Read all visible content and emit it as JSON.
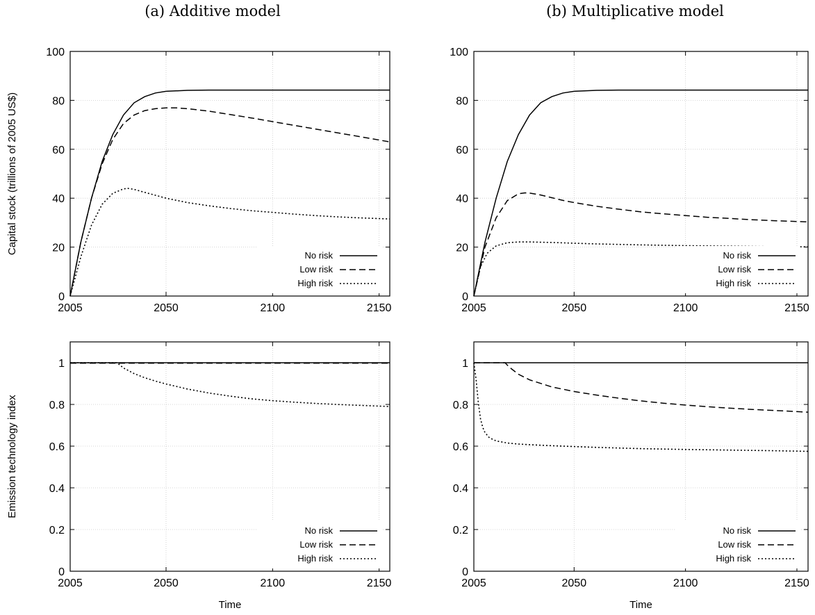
{
  "columns": [
    "(a) Additive model",
    "(b) Multiplicative model"
  ],
  "style": {
    "line_color": "#000000",
    "grid_color": "#c8c8c8",
    "legend_bg": "#ffffff"
  },
  "chart_data": [
    {
      "type": "line",
      "title": "",
      "xlabel": "",
      "ylabel": "Capital stock (trillions of 2005 US$)",
      "xlim": [
        2005,
        2155
      ],
      "ylim": [
        0,
        100
      ],
      "xticks": [
        2005,
        2050,
        2100,
        2150
      ],
      "yticks": [
        0,
        20,
        40,
        60,
        80,
        100
      ],
      "legend_position": "bottom-right",
      "grid": true,
      "series": [
        {
          "name": "No risk",
          "dash": "solid",
          "x": [
            2005,
            2010,
            2015,
            2020,
            2025,
            2030,
            2035,
            2040,
            2045,
            2050,
            2060,
            2070,
            2080,
            2100,
            2120,
            2155
          ],
          "y": [
            0,
            22,
            40,
            55,
            66,
            74,
            79,
            81.5,
            83,
            83.7,
            84.1,
            84.2,
            84.2,
            84.2,
            84.2,
            84.2
          ]
        },
        {
          "name": "Low risk",
          "dash": "dashed",
          "x": [
            2005,
            2010,
            2015,
            2020,
            2025,
            2030,
            2035,
            2040,
            2045,
            2050,
            2055,
            2060,
            2070,
            2080,
            2090,
            2100,
            2110,
            2120,
            2130,
            2140,
            2155
          ],
          "y": [
            0,
            22,
            40,
            54,
            64,
            70.5,
            74,
            75.8,
            76.6,
            76.9,
            76.9,
            76.6,
            75.6,
            74.2,
            72.8,
            71.3,
            69.8,
            68.3,
            66.8,
            65.3,
            63
          ]
        },
        {
          "name": "High risk",
          "dash": "dotted",
          "x": [
            2005,
            2010,
            2015,
            2020,
            2025,
            2030,
            2032,
            2035,
            2040,
            2045,
            2050,
            2060,
            2070,
            2080,
            2090,
            2100,
            2110,
            2120,
            2130,
            2140,
            2155
          ],
          "y": [
            0,
            16,
            29,
            37.5,
            42,
            43.8,
            44,
            43.6,
            42.4,
            41.2,
            40,
            38.2,
            36.9,
            35.8,
            34.9,
            34.2,
            33.5,
            32.9,
            32.4,
            32,
            31.5
          ]
        }
      ]
    },
    {
      "type": "line",
      "title": "",
      "xlabel": "",
      "ylabel": "",
      "xlim": [
        2005,
        2155
      ],
      "ylim": [
        0,
        100
      ],
      "xticks": [
        2005,
        2050,
        2100,
        2150
      ],
      "yticks": [
        0,
        20,
        40,
        60,
        80,
        100
      ],
      "legend_position": "bottom-right",
      "grid": true,
      "series": [
        {
          "name": "No risk",
          "dash": "solid",
          "x": [
            2005,
            2010,
            2015,
            2020,
            2025,
            2030,
            2035,
            2040,
            2045,
            2050,
            2060,
            2070,
            2080,
            2100,
            2120,
            2155
          ],
          "y": [
            0,
            22,
            40,
            55,
            66,
            74,
            79,
            81.5,
            83,
            83.7,
            84.1,
            84.2,
            84.2,
            84.2,
            84.2,
            84.2
          ]
        },
        {
          "name": "Low risk",
          "dash": "dashed",
          "x": [
            2005,
            2010,
            2015,
            2020,
            2025,
            2028,
            2030,
            2035,
            2040,
            2045,
            2050,
            2060,
            2070,
            2080,
            2090,
            2100,
            2110,
            2120,
            2130,
            2140,
            2155
          ],
          "y": [
            0,
            20,
            32,
            39,
            41.8,
            42.2,
            42.1,
            41.3,
            40.2,
            39.1,
            38.2,
            36.7,
            35.5,
            34.4,
            33.6,
            32.9,
            32.2,
            31.7,
            31.2,
            30.8,
            30.3
          ]
        },
        {
          "name": "High risk",
          "dash": "dotted",
          "x": [
            2005,
            2008,
            2011,
            2015,
            2020,
            2025,
            2030,
            2040,
            2050,
            2060,
            2080,
            2100,
            2120,
            2140,
            2155
          ],
          "y": [
            0,
            12,
            17.5,
            20.5,
            21.8,
            22.1,
            22.1,
            21.9,
            21.6,
            21.3,
            20.9,
            20.6,
            20.4,
            20.2,
            20.1
          ]
        }
      ]
    },
    {
      "type": "line",
      "title": "",
      "xlabel": "Time",
      "ylabel": "Emission technology index",
      "xlim": [
        2005,
        2155
      ],
      "ylim": [
        0,
        1.1
      ],
      "xticks": [
        2005,
        2050,
        2100,
        2150
      ],
      "yticks": [
        0,
        0.2,
        0.4,
        0.6,
        0.8,
        1
      ],
      "legend_position": "bottom-right",
      "grid": true,
      "series": [
        {
          "name": "No risk",
          "dash": "solid",
          "x": [
            2005,
            2155
          ],
          "y": [
            1,
            1
          ]
        },
        {
          "name": "Low risk",
          "dash": "dashed",
          "x": [
            2005,
            2155
          ],
          "y": [
            0.998,
            0.998
          ]
        },
        {
          "name": "High risk",
          "dash": "dotted",
          "x": [
            2005,
            2010,
            2015,
            2020,
            2025,
            2027,
            2030,
            2035,
            2040,
            2045,
            2050,
            2060,
            2070,
            2080,
            2090,
            2100,
            2110,
            2120,
            2130,
            2140,
            2155
          ],
          "y": [
            1,
            1,
            1,
            1,
            1,
            1,
            0.975,
            0.948,
            0.928,
            0.912,
            0.898,
            0.874,
            0.855,
            0.84,
            0.827,
            0.818,
            0.811,
            0.805,
            0.8,
            0.796,
            0.79
          ]
        }
      ]
    },
    {
      "type": "line",
      "title": "",
      "xlabel": "Time",
      "ylabel": "",
      "xlim": [
        2005,
        2155
      ],
      "ylim": [
        0,
        1.1
      ],
      "xticks": [
        2005,
        2050,
        2100,
        2150
      ],
      "yticks": [
        0,
        0.2,
        0.4,
        0.6,
        0.8,
        1
      ],
      "legend_position": "bottom-right",
      "grid": true,
      "series": [
        {
          "name": "No risk",
          "dash": "solid",
          "x": [
            2005,
            2155
          ],
          "y": [
            1,
            1
          ]
        },
        {
          "name": "Low risk",
          "dash": "dashed",
          "x": [
            2005,
            2010,
            2015,
            2019,
            2021,
            2025,
            2030,
            2040,
            2050,
            2060,
            2070,
            2080,
            2090,
            2100,
            2110,
            2120,
            2130,
            2140,
            2155
          ],
          "y": [
            1,
            1,
            1,
            1,
            0.978,
            0.945,
            0.918,
            0.884,
            0.862,
            0.845,
            0.83,
            0.817,
            0.806,
            0.797,
            0.789,
            0.782,
            0.776,
            0.771,
            0.763
          ]
        },
        {
          "name": "High risk",
          "dash": "dotted",
          "x": [
            2005,
            2006,
            2007,
            2008,
            2009,
            2010,
            2012,
            2015,
            2020,
            2025,
            2030,
            2040,
            2050,
            2060,
            2080,
            2100,
            2120,
            2140,
            2155
          ],
          "y": [
            1,
            0.92,
            0.81,
            0.73,
            0.69,
            0.665,
            0.64,
            0.625,
            0.615,
            0.61,
            0.607,
            0.602,
            0.598,
            0.594,
            0.588,
            0.584,
            0.581,
            0.578,
            0.575
          ]
        }
      ]
    }
  ]
}
